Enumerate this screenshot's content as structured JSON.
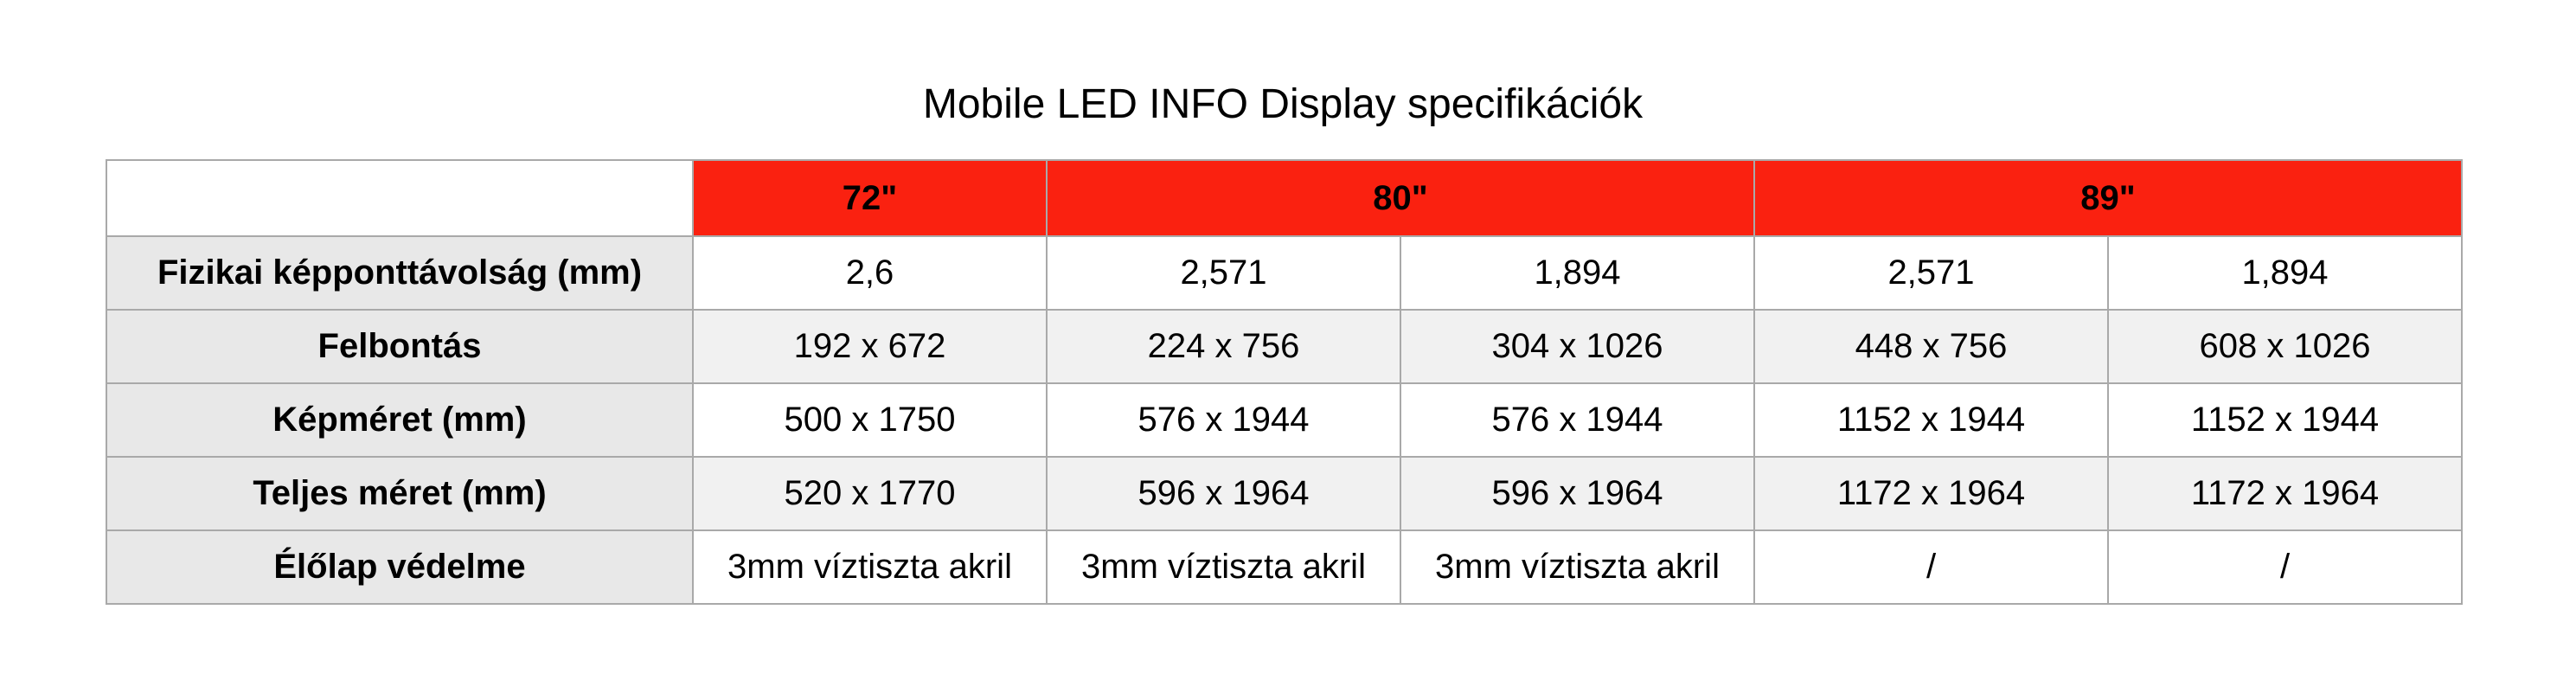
{
  "title": "Mobile LED INFO Display specifikációk",
  "colors": {
    "header_red": "#fa2110",
    "label_bg": "#e8e8e8",
    "stripe_bg": "#f1f1f1",
    "border": "#a9a9a9"
  },
  "table": {
    "header": {
      "corner": "",
      "groups": [
        {
          "label": "72\"",
          "span": 1
        },
        {
          "label": "80\"",
          "span": 2
        },
        {
          "label": "89\"",
          "span": 2
        }
      ]
    },
    "rows": [
      {
        "label": "Fizikai képponttávolság (mm)",
        "values": [
          "2,6",
          "2,571",
          "1,894",
          "2,571",
          "1,894"
        ]
      },
      {
        "label": "Felbontás",
        "values": [
          "192 x 672",
          "224 x 756",
          "304 x 1026",
          "448 x 756",
          "608 x 1026"
        ]
      },
      {
        "label": "Képméret (mm)",
        "values": [
          "500 x 1750",
          "576 x 1944",
          "576 x 1944",
          "1152 x 1944",
          "1152 x 1944"
        ]
      },
      {
        "label": "Teljes méret (mm)",
        "values": [
          "520 x 1770",
          "596 x 1964",
          "596 x 1964",
          "1172 x 1964",
          "1172 x 1964"
        ]
      },
      {
        "label": "Élőlap védelme",
        "values": [
          "3mm víztiszta akril",
          "3mm víztiszta akril",
          "3mm víztiszta akril",
          "/",
          "/"
        ]
      }
    ]
  }
}
